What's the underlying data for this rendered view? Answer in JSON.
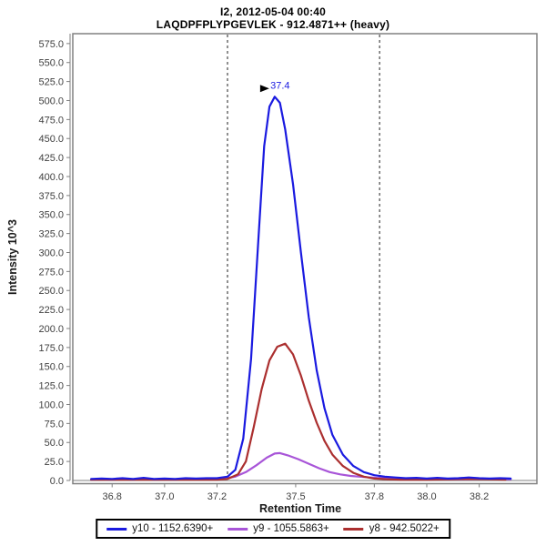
{
  "header": {
    "title": "I2, 2012-05-04 00:40",
    "subtitle": "LAQDPFPLYPGEVLEK - 912.4871++ (heavy)"
  },
  "chart_data": {
    "type": "line",
    "title": "I2, 2012-05-04 00:40",
    "subtitle": "LAQDPFPLYPGEVLEK - 912.4871++ (heavy)",
    "xlabel": "Retention Time",
    "ylabel": "Intensity 10^3",
    "xlim": [
      36.65,
      38.42
    ],
    "ylim": [
      0,
      588
    ],
    "grid": false,
    "legend_position": "bottom",
    "x_tick_values": [
      36.8,
      37.0,
      37.2,
      37.5,
      37.8,
      38.0,
      38.2
    ],
    "x_tick_labels": [
      "36.8",
      "37.0",
      "37.2",
      "37.5",
      "37.8",
      "38.0",
      "38.2"
    ],
    "y_tick_labels": [
      "0.0",
      "25.0",
      "50.0",
      "75.0",
      "100.0",
      "125.0",
      "150.0",
      "175.0",
      "200.0",
      "225.0",
      "250.0",
      "275.0",
      "300.0",
      "325.0",
      "350.0",
      "375.0",
      "400.0",
      "425.0",
      "450.0",
      "475.0",
      "500.0",
      "525.0",
      "550.0",
      "575.0"
    ],
    "integration_boundaries": {
      "start_rt": 37.24,
      "end_rt": 37.82,
      "style": "dashed"
    },
    "peak_annotation": {
      "label": "37.4",
      "rt": 37.42,
      "intensity_k": 505
    },
    "series": [
      {
        "name": "y10 - 1152.6390+",
        "color": "#1a1ae0",
        "points": [
          [
            36.72,
            2
          ],
          [
            36.76,
            2.5
          ],
          [
            36.8,
            2
          ],
          [
            36.84,
            3
          ],
          [
            36.88,
            2
          ],
          [
            36.92,
            3.5
          ],
          [
            36.96,
            2
          ],
          [
            37.0,
            2.5
          ],
          [
            37.04,
            2
          ],
          [
            37.08,
            3
          ],
          [
            37.12,
            2.5
          ],
          [
            37.16,
            3
          ],
          [
            37.2,
            3
          ],
          [
            37.24,
            5
          ],
          [
            37.27,
            14
          ],
          [
            37.3,
            55
          ],
          [
            37.33,
            160
          ],
          [
            37.36,
            330
          ],
          [
            37.38,
            440
          ],
          [
            37.4,
            492
          ],
          [
            37.42,
            505
          ],
          [
            37.44,
            497
          ],
          [
            37.46,
            462
          ],
          [
            37.49,
            390
          ],
          [
            37.52,
            300
          ],
          [
            37.55,
            215
          ],
          [
            37.58,
            145
          ],
          [
            37.61,
            95
          ],
          [
            37.64,
            60
          ],
          [
            37.68,
            34
          ],
          [
            37.72,
            19
          ],
          [
            37.76,
            11
          ],
          [
            37.8,
            7
          ],
          [
            37.84,
            5
          ],
          [
            37.88,
            4
          ],
          [
            37.92,
            3
          ],
          [
            37.96,
            3.5
          ],
          [
            38.0,
            2.5
          ],
          [
            38.04,
            3.5
          ],
          [
            38.08,
            2.5
          ],
          [
            38.12,
            3
          ],
          [
            38.16,
            4
          ],
          [
            38.2,
            3
          ],
          [
            38.24,
            2.5
          ],
          [
            38.28,
            3
          ],
          [
            38.32,
            2.5
          ]
        ]
      },
      {
        "name": "y9 - 1055.5863+",
        "color": "#a855d8",
        "points": [
          [
            36.72,
            1.5
          ],
          [
            36.85,
            1.5
          ],
          [
            37.0,
            1.5
          ],
          [
            37.15,
            1.5
          ],
          [
            37.22,
            2
          ],
          [
            37.27,
            5
          ],
          [
            37.31,
            11
          ],
          [
            37.35,
            20
          ],
          [
            37.39,
            30
          ],
          [
            37.42,
            35.5
          ],
          [
            37.44,
            36
          ],
          [
            37.47,
            33
          ],
          [
            37.51,
            28
          ],
          [
            37.55,
            22
          ],
          [
            37.59,
            16
          ],
          [
            37.63,
            11
          ],
          [
            37.67,
            8
          ],
          [
            37.71,
            6
          ],
          [
            37.76,
            4.5
          ],
          [
            37.81,
            3.5
          ],
          [
            37.86,
            3
          ],
          [
            37.92,
            2.5
          ],
          [
            37.98,
            2
          ],
          [
            38.05,
            1.5
          ],
          [
            38.15,
            1.5
          ],
          [
            38.25,
            2
          ],
          [
            38.32,
            1.5
          ]
        ]
      },
      {
        "name": "y8 - 942.5022+",
        "color": "#ab2f2f",
        "points": [
          [
            36.72,
            1
          ],
          [
            36.9,
            1
          ],
          [
            37.1,
            1
          ],
          [
            37.2,
            1
          ],
          [
            37.24,
            2
          ],
          [
            37.28,
            8
          ],
          [
            37.31,
            25
          ],
          [
            37.34,
            70
          ],
          [
            37.37,
            120
          ],
          [
            37.4,
            158
          ],
          [
            37.43,
            176
          ],
          [
            37.46,
            180
          ],
          [
            37.49,
            166
          ],
          [
            37.52,
            138
          ],
          [
            37.55,
            105
          ],
          [
            37.58,
            76
          ],
          [
            37.61,
            52
          ],
          [
            37.64,
            34
          ],
          [
            37.68,
            19
          ],
          [
            37.72,
            10
          ],
          [
            37.76,
            5
          ],
          [
            37.8,
            2.5
          ],
          [
            37.85,
            1.5
          ],
          [
            37.9,
            1
          ],
          [
            38.0,
            1
          ],
          [
            38.1,
            1.5
          ],
          [
            38.16,
            2
          ],
          [
            38.24,
            1.5
          ],
          [
            38.3,
            1
          ]
        ]
      }
    ]
  },
  "legend": {
    "items": [
      {
        "label": "y10 - 1152.6390+",
        "color": "#1a1ae0"
      },
      {
        "label": "y9 - 1055.5863+",
        "color": "#a855d8"
      },
      {
        "label": "y8 - 942.5022+",
        "color": "#ab2f2f"
      }
    ]
  },
  "colors": {
    "plot_border": "#808080",
    "tick_label": "#404040",
    "axis_title": "#1a1a1a",
    "boundary_line": "#222222",
    "annotation_text": "#1a1ae0",
    "annotation_arrow": "#000000"
  }
}
